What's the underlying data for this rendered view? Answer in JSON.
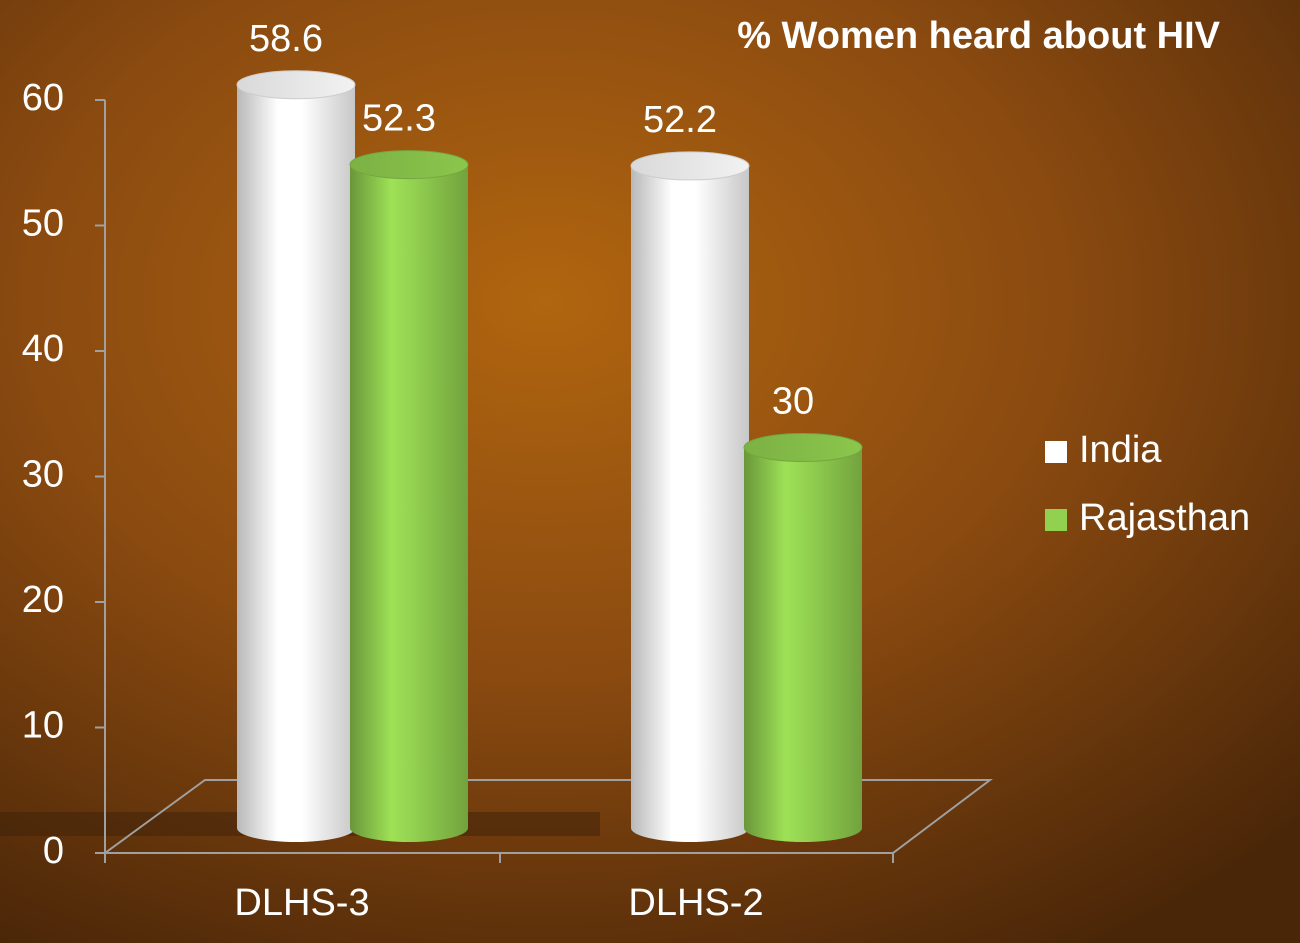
{
  "chart_data": {
    "type": "bar",
    "title": "% Women heard about HIV",
    "categories": [
      "DLHS-3",
      "DLHS-2"
    ],
    "series": [
      {
        "name": "India",
        "color": "#ffffff",
        "values": [
          58.6,
          52.2
        ]
      },
      {
        "name": "Rajasthan",
        "color": "#92d050",
        "values": [
          52.3,
          30
        ]
      }
    ],
    "ylim": [
      0,
      60
    ],
    "yticks": [
      0,
      10,
      20,
      30,
      40,
      50,
      60
    ],
    "legend": "right"
  }
}
